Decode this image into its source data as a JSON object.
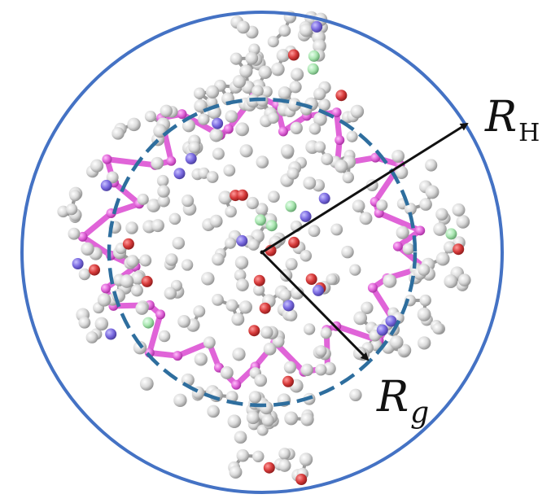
{
  "labels": {
    "rh_main": "R",
    "rh_sub": "H",
    "rg_main": "R",
    "rg_sub": "g"
  },
  "colors": {
    "outer_circle": "#4472c4",
    "inner_circle": "#2e6e9e",
    "carbon_atom": "#d6d6d6",
    "backbone": "#e064d8",
    "oxygen_atom": "#d63a3a",
    "nitrogen_atom": "#7a6ae0",
    "fluorine_atom": "#a9e6b0",
    "arrow": "#111111"
  },
  "atoms": {
    "carbon_count": 340,
    "backbone_count": 46,
    "oxygen_count": 18,
    "nitrogen_count": 14,
    "fluorine_count": 7
  }
}
